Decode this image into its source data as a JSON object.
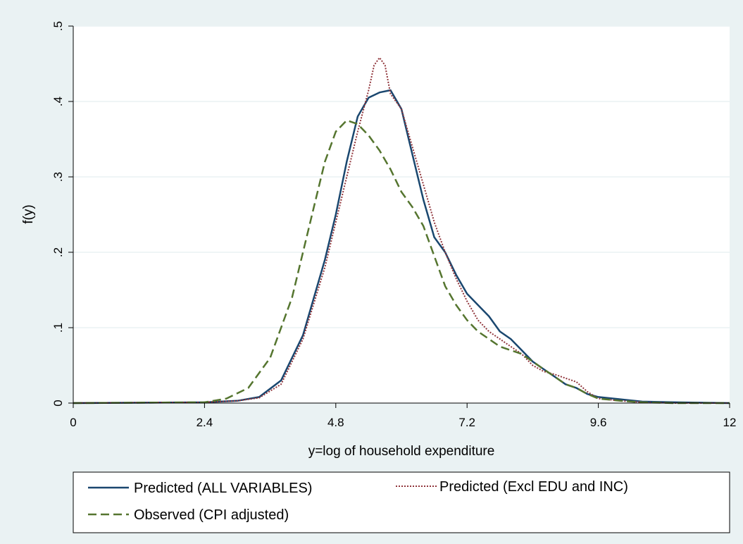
{
  "chart_data": {
    "type": "line",
    "title": "",
    "xlabel": "y=log of household expenditure",
    "ylabel": "f(y)",
    "xlim": [
      0,
      12
    ],
    "ylim": [
      0,
      0.5
    ],
    "x_ticks": [
      0,
      2.4,
      4.8,
      7.2,
      9.6,
      12
    ],
    "x_tick_labels": [
      "0",
      "2.4",
      "4.8",
      "7.2",
      "9.6",
      "12"
    ],
    "y_ticks": [
      0,
      0.1,
      0.2,
      0.3,
      0.4,
      0.5
    ],
    "y_tick_labels": [
      "0",
      ".1",
      ".2",
      ".3",
      ".4",
      ".5"
    ],
    "grid": "horizontal",
    "legend_position": "bottom",
    "series": [
      {
        "name": "Predicted (ALL VARIABLES)",
        "color": "#1a476f",
        "style": "solid",
        "x": [
          0,
          2.4,
          3.0,
          3.4,
          3.8,
          4.2,
          4.6,
          4.8,
          5.0,
          5.2,
          5.4,
          5.6,
          5.8,
          6.0,
          6.2,
          6.4,
          6.6,
          6.8,
          7.0,
          7.2,
          7.4,
          7.6,
          7.8,
          8.0,
          8.2,
          8.4,
          8.6,
          8.8,
          9.0,
          9.2,
          9.4,
          9.6,
          10.0,
          10.4,
          11.0,
          12.0
        ],
        "y": [
          0,
          0.001,
          0.003,
          0.008,
          0.03,
          0.09,
          0.19,
          0.25,
          0.32,
          0.38,
          0.405,
          0.412,
          0.415,
          0.39,
          0.33,
          0.27,
          0.22,
          0.2,
          0.17,
          0.145,
          0.13,
          0.115,
          0.095,
          0.085,
          0.07,
          0.055,
          0.045,
          0.035,
          0.025,
          0.02,
          0.012,
          0.008,
          0.005,
          0.002,
          0.001,
          0
        ]
      },
      {
        "name": "Predicted (Excl EDU and INC)",
        "color": "#90353b",
        "style": "dotted",
        "x": [
          0,
          2.4,
          3.0,
          3.4,
          3.8,
          4.2,
          4.6,
          4.8,
          5.0,
          5.2,
          5.4,
          5.5,
          5.6,
          5.7,
          5.8,
          6.0,
          6.2,
          6.4,
          6.6,
          6.8,
          7.0,
          7.2,
          7.4,
          7.6,
          7.8,
          8.0,
          8.2,
          8.4,
          8.6,
          8.8,
          9.0,
          9.2,
          9.4,
          9.6,
          10.0,
          10.4,
          11.0,
          12.0
        ],
        "y": [
          0,
          0.001,
          0.003,
          0.007,
          0.025,
          0.085,
          0.18,
          0.24,
          0.3,
          0.36,
          0.415,
          0.448,
          0.458,
          0.448,
          0.41,
          0.39,
          0.34,
          0.29,
          0.24,
          0.2,
          0.165,
          0.135,
          0.11,
          0.095,
          0.085,
          0.075,
          0.065,
          0.05,
          0.042,
          0.038,
          0.033,
          0.028,
          0.015,
          0.006,
          0.003,
          0.001,
          0,
          0
        ]
      },
      {
        "name": "Observed (CPI adjusted)",
        "color": "#55752f",
        "style": "dashed",
        "x": [
          0,
          2.4,
          2.8,
          3.2,
          3.6,
          4.0,
          4.4,
          4.6,
          4.8,
          5.0,
          5.2,
          5.4,
          5.6,
          5.8,
          6.0,
          6.2,
          6.4,
          6.6,
          6.8,
          7.0,
          7.2,
          7.4,
          7.6,
          7.8,
          8.0,
          8.2,
          8.4,
          8.6,
          8.8,
          9.0,
          9.2,
          9.4,
          9.6,
          10.0,
          10.4,
          11.0,
          12.0
        ],
        "y": [
          0,
          0.001,
          0.006,
          0.02,
          0.06,
          0.14,
          0.26,
          0.32,
          0.36,
          0.375,
          0.37,
          0.355,
          0.335,
          0.31,
          0.28,
          0.26,
          0.235,
          0.195,
          0.155,
          0.13,
          0.11,
          0.095,
          0.085,
          0.075,
          0.07,
          0.065,
          0.055,
          0.045,
          0.035,
          0.025,
          0.02,
          0.012,
          0.006,
          0.003,
          0.001,
          0,
          0
        ]
      }
    ]
  }
}
